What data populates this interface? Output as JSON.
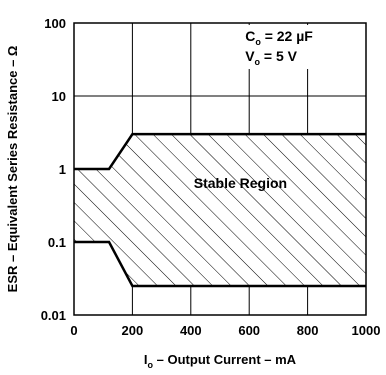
{
  "chart_data": {
    "type": "area",
    "xlabel": {
      "main": "I",
      "sub": "o",
      "rest": " – Output Current – mA"
    },
    "ylabel": "ESR – Equivalent Series Resistance – Ω",
    "x_ticks": [
      "0",
      "200",
      "400",
      "600",
      "800",
      "1000"
    ],
    "y_ticks": [
      "0.01",
      "0.1",
      "1",
      "10",
      "100"
    ],
    "xlim": [
      0,
      1000
    ],
    "ylim": [
      0.01,
      100
    ],
    "y_scale": "log",
    "grid": true,
    "region_label": "Stable Region",
    "annotations": [
      {
        "main": "C",
        "sub": "o",
        "rest": " = 22 µF"
      },
      {
        "main": "V",
        "sub": "o",
        "rest": " = 5 V"
      }
    ],
    "upper_boundary": {
      "x": [
        0,
        120,
        200,
        1000
      ],
      "y": [
        1,
        1,
        3,
        3
      ]
    },
    "lower_boundary": {
      "x": [
        0,
        120,
        200,
        1000
      ],
      "y": [
        0.1,
        0.1,
        0.025,
        0.025
      ]
    }
  }
}
